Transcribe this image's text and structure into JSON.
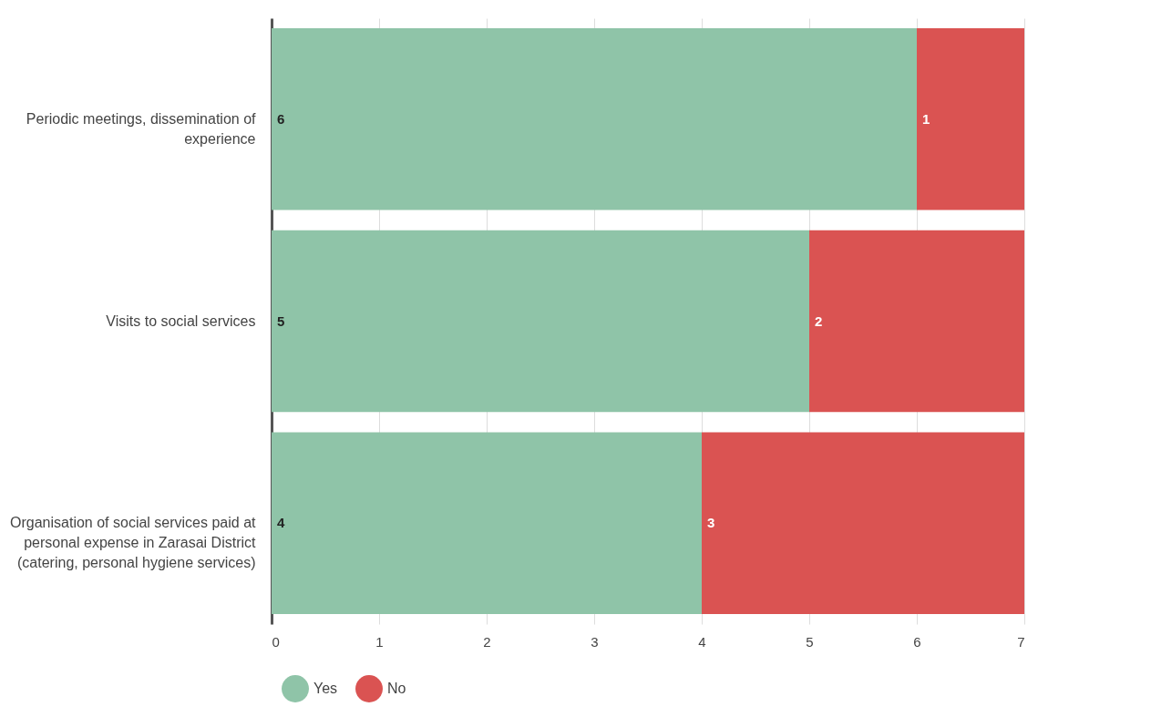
{
  "chart_data": {
    "type": "bar",
    "orientation": "horizontal",
    "stacked": true,
    "categories": [
      "Periodic meetings, dissemination of experience",
      "Visits to social services",
      "Organisation of social services paid at personal expense in Zarasai District (catering, personal hygiene services)"
    ],
    "series": [
      {
        "name": "Yes",
        "color": "#8fc4a8",
        "values": [
          6,
          5,
          4
        ]
      },
      {
        "name": "No",
        "color": "#da5352",
        "values": [
          1,
          2,
          3
        ]
      }
    ],
    "xlim": [
      0,
      7
    ],
    "xticks": [
      0,
      1,
      2,
      3,
      4,
      5,
      6,
      7
    ],
    "grid": "x",
    "legend": "bottom",
    "data_labels": true
  }
}
